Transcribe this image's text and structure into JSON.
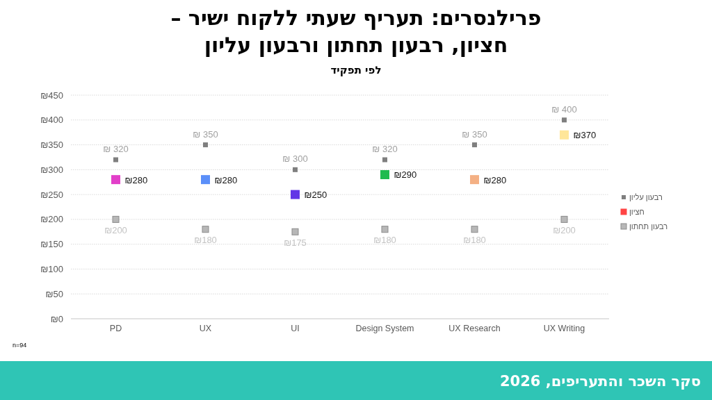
{
  "chart_data": {
    "type": "scatter",
    "title": "פרילנסרים: תעריף שעתי ללקוח ישיר –\nחציון, רבעון תחתון ורבעון עליון",
    "subtitle": "לפי תפקיד",
    "categories": [
      "PD",
      "UX",
      "UI",
      "Design System",
      "UX Research",
      "UX Writing"
    ],
    "series": [
      {
        "name": "רבעון עליון",
        "color": "#7f7f7f",
        "values": [
          320,
          350,
          300,
          320,
          350,
          400
        ],
        "value_labels": [
          "₪ 320",
          "₪ 350",
          "₪ 300",
          "₪ 320",
          "₪ 350",
          "₪ 400"
        ]
      },
      {
        "name": "חציון",
        "color": "#ff4444",
        "colors": [
          "#e23fc9",
          "#5b8ff9",
          "#6236e6",
          "#1fbb4f",
          "#f4b084",
          "#ffe699"
        ],
        "values": [
          280,
          280,
          250,
          290,
          280,
          370
        ],
        "value_labels": [
          "₪280",
          "₪280",
          "₪250",
          "₪290",
          "₪280",
          "₪370"
        ]
      },
      {
        "name": "רבעון תחתון",
        "color": "#b7b7b7",
        "values": [
          200,
          180,
          175,
          180,
          180,
          200
        ],
        "value_labels": [
          "₪200",
          "₪180",
          "₪175",
          "₪180",
          "₪180",
          "₪200"
        ]
      }
    ],
    "ylim": [
      0,
      450
    ],
    "yticks": [
      {
        "value": 0,
        "label": "₪0"
      },
      {
        "value": 50,
        "label": "₪50"
      },
      {
        "value": 100,
        "label": "₪100"
      },
      {
        "value": 150,
        "label": "₪150"
      },
      {
        "value": 200,
        "label": "₪200"
      },
      {
        "value": 250,
        "label": "₪250"
      },
      {
        "value": 300,
        "label": "₪300"
      },
      {
        "value": 350,
        "label": "₪350"
      },
      {
        "value": 400,
        "label": "₪400"
      },
      {
        "value": 450,
        "label": "₪450"
      }
    ],
    "grid": "y",
    "legend": "right",
    "marker": "square",
    "annotations": [
      "n=94",
      "סקר השכר והתעריפים, 2026"
    ]
  }
}
